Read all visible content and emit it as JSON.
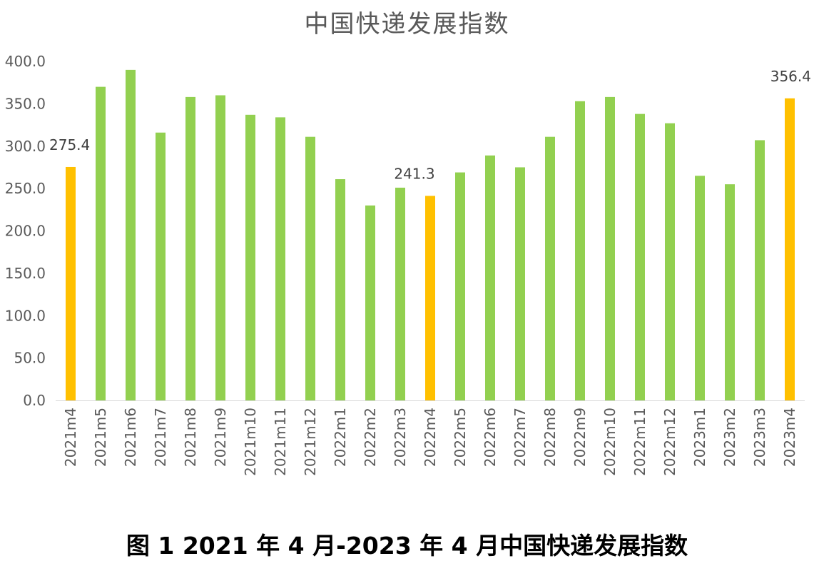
{
  "chart_data": {
    "type": "bar",
    "title": "中国快递发展指数",
    "caption": "图 1  2021 年 4 月-2023 年 4 月中国快递发展指数",
    "ylim": [
      0,
      400
    ],
    "yticks": [
      "0.0",
      "50.0",
      "100.0",
      "150.0",
      "200.0",
      "250.0",
      "300.0",
      "350.0",
      "400.0"
    ],
    "categories": [
      "2021m4",
      "2021m5",
      "2021m6",
      "2021m7",
      "2021m8",
      "2021m9",
      "2021m10",
      "2021m11",
      "2021m12",
      "2022m1",
      "2022m2",
      "2022m3",
      "2022m4",
      "2022m5",
      "2022m6",
      "2022m7",
      "2022m8",
      "2022m9",
      "2022m10",
      "2022m11",
      "2022m12",
      "2023m1",
      "2023m2",
      "2023m3",
      "2023m4"
    ],
    "values": [
      275.4,
      370,
      390,
      316,
      358,
      360,
      337,
      334,
      311,
      261,
      230,
      251,
      241.3,
      269,
      289,
      275,
      311,
      353,
      358,
      338,
      327,
      265,
      255,
      307,
      356.4
    ],
    "highlight_indices": [
      0,
      12,
      24
    ],
    "data_labels": [
      {
        "index": 0,
        "text": "275.4"
      },
      {
        "index": 12,
        "text": "241.3"
      },
      {
        "index": 24,
        "text": "356.4"
      }
    ],
    "colors": {
      "normal": "#92D050",
      "highlight": "#FFC000"
    },
    "grid": false,
    "legend": "none"
  }
}
